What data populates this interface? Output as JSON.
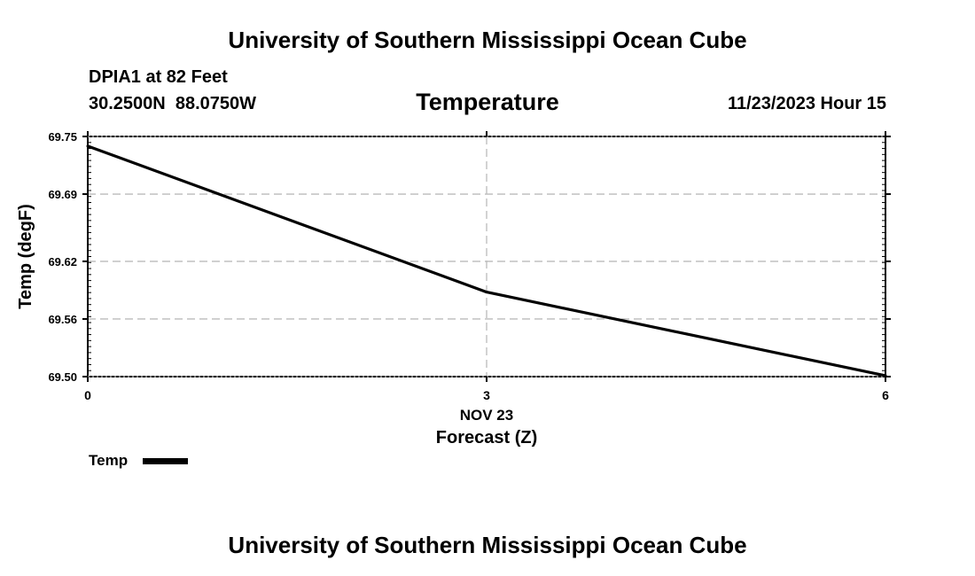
{
  "header": {
    "title": "University of Southern Mississippi Ocean Cube",
    "station": "DPIA1 at 82 Feet",
    "coords": "30.2500N  88.0750W",
    "variable": "Temperature",
    "datetime": "11/23/2023 Hour 15"
  },
  "footer": {
    "title": "University of Southern Mississippi Ocean Cube"
  },
  "legend": {
    "label": "Temp"
  },
  "chart_data": {
    "type": "line",
    "title": "Temperature",
    "xlabel": "Forecast (Z)",
    "xsublabel": "NOV 23",
    "ylabel": "Temp (degF)",
    "xlim": [
      0,
      6
    ],
    "ylim": [
      69.5,
      69.75
    ],
    "xticks": [
      0,
      3,
      6
    ],
    "yticks": [
      69.5,
      69.56,
      69.62,
      69.69,
      69.75
    ],
    "ytick_labels": [
      "69.50",
      "69.56",
      "69.62",
      "69.69",
      "69.75"
    ],
    "grid": true,
    "series": [
      {
        "name": "Temp",
        "color": "#000000",
        "x": [
          0,
          3,
          6
        ],
        "y": [
          69.74,
          69.588,
          69.501
        ]
      }
    ]
  }
}
